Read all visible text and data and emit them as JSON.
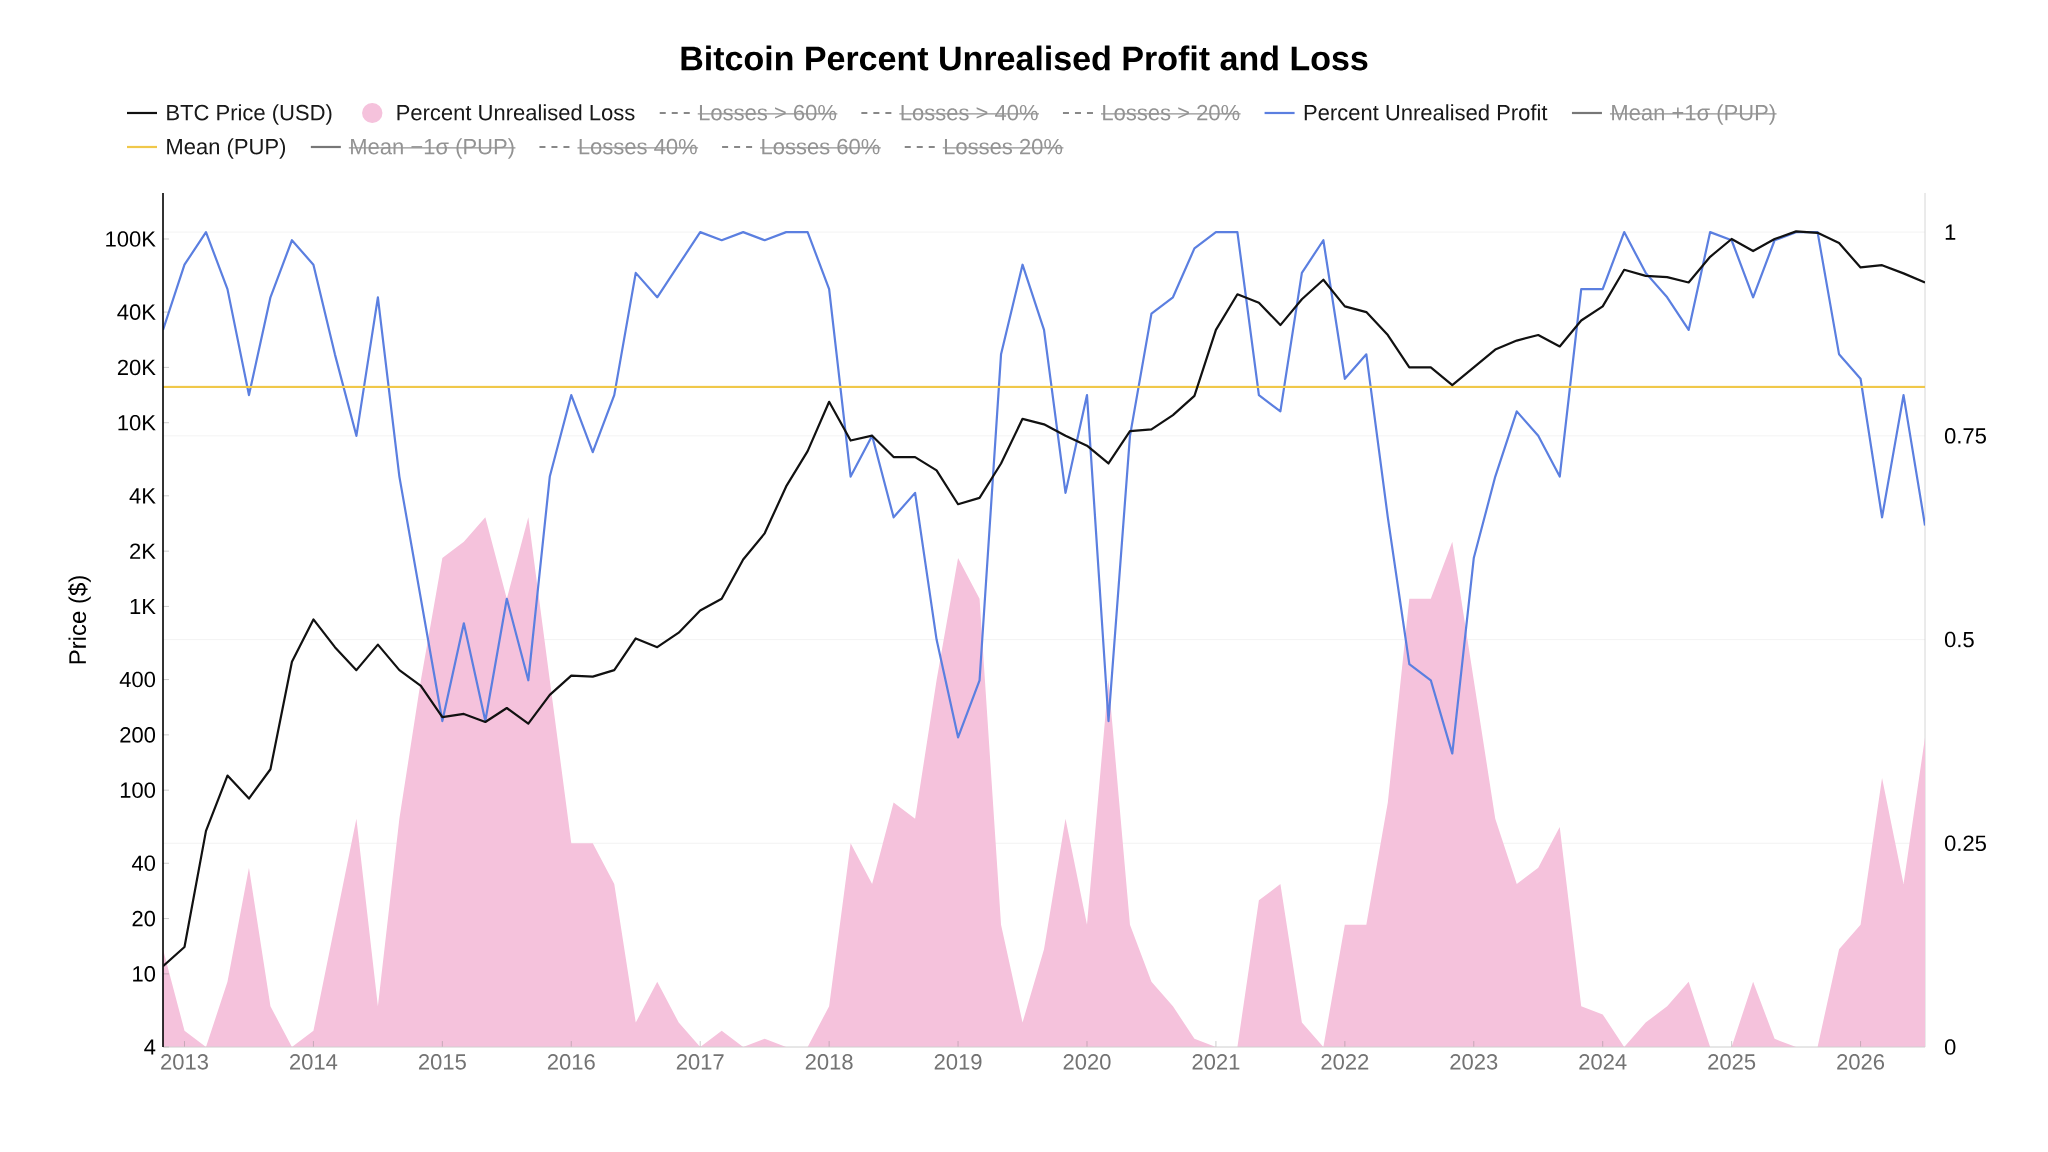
{
  "chart_data": {
    "type": "line",
    "title": "Bitcoin Percent Unrealised Profit and Loss",
    "ylabel": "Price ($)",
    "x": [
      "2012-11",
      "2013-01",
      "2013-03",
      "2013-05",
      "2013-07",
      "2013-09",
      "2013-11",
      "2014-01",
      "2014-03",
      "2014-05",
      "2014-07",
      "2014-09",
      "2014-11",
      "2015-01",
      "2015-03",
      "2015-05",
      "2015-07",
      "2015-09",
      "2015-11",
      "2016-01",
      "2016-03",
      "2016-05",
      "2016-07",
      "2016-09",
      "2016-11",
      "2017-01",
      "2017-03",
      "2017-05",
      "2017-07",
      "2017-09",
      "2017-11",
      "2018-01",
      "2018-03",
      "2018-05",
      "2018-07",
      "2018-09",
      "2018-11",
      "2019-01",
      "2019-03",
      "2019-05",
      "2019-07",
      "2019-09",
      "2019-11",
      "2020-01",
      "2020-03",
      "2020-05",
      "2020-07",
      "2020-09",
      "2020-11",
      "2021-01",
      "2021-03",
      "2021-05",
      "2021-07",
      "2021-09",
      "2021-11",
      "2022-01",
      "2022-03",
      "2022-05",
      "2022-07",
      "2022-09",
      "2022-11",
      "2023-01",
      "2023-03",
      "2023-05",
      "2023-07",
      "2023-09",
      "2023-11",
      "2024-01",
      "2024-03",
      "2024-05",
      "2024-07",
      "2024-09",
      "2024-11",
      "2025-01",
      "2025-03",
      "2025-05",
      "2025-07",
      "2025-09",
      "2025-11",
      "2026-01",
      "2026-03",
      "2026-05",
      "2026-07"
    ],
    "xlim": [
      "2012-11",
      "2026-07"
    ],
    "xticks": [
      "2013",
      "2014",
      "2015",
      "2016",
      "2017",
      "2018",
      "2019",
      "2020",
      "2021",
      "2022",
      "2023",
      "2024",
      "2025",
      "2026"
    ],
    "log": "y",
    "ylim": [
      4,
      178000
    ],
    "yticks": [
      4,
      10,
      20,
      40,
      100,
      200,
      400,
      {
        "value": 1000,
        "label": "1K"
      },
      {
        "value": 2000,
        "label": "2K"
      },
      {
        "value": 4000,
        "label": "4K"
      },
      {
        "value": 10000,
        "label": "10K"
      },
      {
        "value": 20000,
        "label": "20K"
      },
      {
        "value": 40000,
        "label": "40K"
      },
      {
        "value": 100000,
        "label": "100K"
      }
    ],
    "y2lim": [
      0,
      1.048
    ],
    "y2ticks": [
      0,
      0.25,
      0.5,
      0.75,
      1
    ],
    "grid": "y",
    "legend": "top",
    "series": [
      {
        "name": "BTC Price (USD)",
        "color": "#111111",
        "values": [
          11,
          14,
          60,
          120,
          90,
          130,
          500,
          850,
          600,
          450,
          620,
          450,
          370,
          250,
          260,
          235,
          280,
          230,
          330,
          420,
          415,
          450,
          670,
          600,
          720,
          950,
          1100,
          1800,
          2500,
          4500,
          7000,
          13000,
          8000,
          8500,
          6500,
          6500,
          5500,
          3600,
          3900,
          6000,
          10500,
          9800,
          8500,
          7500,
          6000,
          9000,
          9200,
          11000,
          14000,
          32000,
          50000,
          45000,
          34000,
          47000,
          60000,
          43000,
          40000,
          30000,
          20000,
          20000,
          16000,
          20000,
          25000,
          28000,
          30000,
          26000,
          36000,
          43000,
          68000,
          63000,
          62000,
          58000,
          80000,
          100000,
          86000,
          100000,
          110000,
          108000,
          95000,
          70000,
          72000,
          65000,
          58000
        ]
      },
      {
        "name": "Percent Unrealised Loss",
        "type": "area",
        "axis": "y2",
        "color": "#f5c2dc",
        "values": [
          0.12,
          0.02,
          0.0,
          0.08,
          0.22,
          0.05,
          0.0,
          0.02,
          0.15,
          0.28,
          0.05,
          0.28,
          0.45,
          0.6,
          0.62,
          0.65,
          0.55,
          0.65,
          0.45,
          0.25,
          0.25,
          0.2,
          0.03,
          0.08,
          0.03,
          0.0,
          0.02,
          0.0,
          0.01,
          0.0,
          0.0,
          0.05,
          0.25,
          0.2,
          0.3,
          0.28,
          0.45,
          0.6,
          0.55,
          0.15,
          0.03,
          0.12,
          0.28,
          0.15,
          0.45,
          0.15,
          0.08,
          0.05,
          0.01,
          0.0,
          0.0,
          0.18,
          0.2,
          0.03,
          0.0,
          0.15,
          0.15,
          0.3,
          0.55,
          0.55,
          0.62,
          0.45,
          0.28,
          0.2,
          0.22,
          0.27,
          0.05,
          0.04,
          0.0,
          0.03,
          0.05,
          0.08,
          0.0,
          0.0,
          0.08,
          0.01,
          0.0,
          0.0,
          0.12,
          0.15,
          0.33,
          0.2,
          0.38
        ]
      },
      {
        "name": "Losses > 60%",
        "axis": "y2",
        "color": "#888888",
        "line_style": "dashed",
        "values": [
          null,
          null,
          null,
          null,
          null,
          null,
          null,
          null,
          null,
          null,
          null,
          null,
          null,
          null,
          null,
          null,
          null,
          null,
          null,
          null,
          null,
          null,
          null,
          null,
          null,
          null,
          null,
          null,
          null,
          null,
          null,
          null,
          null,
          null,
          null,
          null,
          null,
          null,
          null,
          null,
          null,
          null,
          null,
          null,
          null,
          null,
          null,
          null,
          null,
          null,
          null,
          null,
          null,
          null,
          null,
          null,
          null,
          null,
          null,
          null,
          null,
          null,
          null,
          null,
          null,
          null,
          null,
          null,
          null,
          null,
          null,
          null,
          null,
          null,
          null,
          null,
          null,
          null,
          null,
          null,
          null,
          null,
          null
        ]
      },
      {
        "name": "Losses > 40%",
        "axis": "y2",
        "color": "#888888",
        "line_style": "dashed",
        "values": [
          null,
          null,
          null,
          null,
          null,
          null,
          null,
          null,
          null,
          null,
          null,
          null,
          null,
          null,
          null,
          null,
          null,
          null,
          null,
          null,
          null,
          null,
          null,
          null,
          null,
          null,
          null,
          null,
          null,
          null,
          null,
          null,
          null,
          null,
          null,
          null,
          null,
          null,
          null,
          null,
          null,
          null,
          null,
          null,
          null,
          null,
          null,
          null,
          null,
          null,
          null,
          null,
          null,
          null,
          null,
          null,
          null,
          null,
          null,
          null,
          null,
          null,
          null,
          null,
          null,
          null,
          null,
          null,
          null,
          null,
          null,
          null,
          null,
          null,
          null,
          null,
          null,
          null,
          null,
          null,
          null,
          null,
          null
        ]
      },
      {
        "name": "Losses > 20%",
        "axis": "y2",
        "color": "#888888",
        "line_style": "dashed",
        "values": [
          null,
          null,
          null,
          null,
          null,
          null,
          null,
          null,
          null,
          null,
          null,
          null,
          null,
          null,
          null,
          null,
          null,
          null,
          null,
          null,
          null,
          null,
          null,
          null,
          null,
          null,
          null,
          null,
          null,
          null,
          null,
          null,
          null,
          null,
          null,
          null,
          null,
          null,
          null,
          null,
          null,
          null,
          null,
          null,
          null,
          null,
          null,
          null,
          null,
          null,
          null,
          null,
          null,
          null,
          null,
          null,
          null,
          null,
          null,
          null,
          null,
          null,
          null,
          null,
          null,
          null,
          null,
          null,
          null,
          null,
          null,
          null,
          null,
          null,
          null,
          null,
          null,
          null,
          null,
          null,
          null,
          null,
          null
        ]
      },
      {
        "name": "Percent Unrealised Profit",
        "axis": "y2",
        "color": "#5b7fe0",
        "values": [
          0.88,
          0.96,
          1.0,
          0.93,
          0.8,
          0.92,
          0.99,
          0.96,
          0.85,
          0.75,
          0.92,
          0.7,
          0.55,
          0.4,
          0.52,
          0.4,
          0.55,
          0.45,
          0.7,
          0.8,
          0.73,
          0.8,
          0.95,
          0.92,
          0.96,
          1.0,
          0.99,
          1.0,
          0.99,
          1.0,
          1.0,
          0.93,
          0.7,
          0.75,
          0.65,
          0.68,
          0.5,
          0.38,
          0.45,
          0.85,
          0.96,
          0.88,
          0.68,
          0.8,
          0.4,
          0.75,
          0.9,
          0.92,
          0.98,
          1.0,
          1.0,
          0.8,
          0.78,
          0.95,
          0.99,
          0.82,
          0.85,
          0.65,
          0.47,
          0.45,
          0.36,
          0.6,
          0.7,
          0.78,
          0.75,
          0.7,
          0.93,
          0.93,
          1.0,
          0.95,
          0.92,
          0.88,
          1.0,
          0.99,
          0.92,
          0.99,
          1.0,
          1.0,
          0.85,
          0.82,
          0.65,
          0.8,
          0.64
        ]
      },
      {
        "name": "Mean +1σ (PUP)",
        "axis": "y2",
        "color": "#777777",
        "values": [
          null,
          null,
          null,
          null,
          null,
          null,
          null,
          null,
          null,
          null,
          null,
          null,
          null,
          null,
          null,
          null,
          null,
          null,
          null,
          null,
          null,
          null,
          null,
          null,
          null,
          null,
          null,
          null,
          null,
          null,
          null,
          null,
          null,
          null,
          null,
          null,
          null,
          null,
          null,
          null,
          null,
          null,
          null,
          null,
          null,
          null,
          null,
          null,
          null,
          null,
          null,
          null,
          null,
          null,
          null,
          null,
          null,
          null,
          null,
          null,
          null,
          null,
          null,
          null,
          null,
          null,
          null,
          null,
          null,
          null,
          null,
          null,
          null,
          null,
          null,
          null,
          null,
          null,
          null,
          null,
          null,
          null,
          null
        ]
      },
      {
        "name": "Mean (PUP)",
        "axis": "y2",
        "color": "#f0c84a",
        "x": [
          "2012-11",
          "2026-07"
        ],
        "values": [
          0.81,
          0.81
        ]
      },
      {
        "name": "Mean −1σ (PUP)",
        "axis": "y2",
        "color": "#777777",
        "values": [
          null,
          null,
          null,
          null,
          null,
          null,
          null,
          null,
          null,
          null,
          null,
          null,
          null,
          null,
          null,
          null,
          null,
          null,
          null,
          null,
          null,
          null,
          null,
          null,
          null,
          null,
          null,
          null,
          null,
          null,
          null,
          null,
          null,
          null,
          null,
          null,
          null,
          null,
          null,
          null,
          null,
          null,
          null,
          null,
          null,
          null,
          null,
          null,
          null,
          null,
          null,
          null,
          null,
          null,
          null,
          null,
          null,
          null,
          null,
          null,
          null,
          null,
          null,
          null,
          null,
          null,
          null,
          null,
          null,
          null,
          null,
          null,
          null,
          null,
          null,
          null,
          null,
          null,
          null,
          null,
          null,
          null,
          null
        ]
      },
      {
        "name": "Losses 40%",
        "axis": "y2",
        "color": "#888888",
        "line_style": "dashed",
        "values": [
          null,
          null,
          null,
          null,
          null,
          null,
          null,
          null,
          null,
          null,
          null,
          null,
          null,
          null,
          null,
          null,
          null,
          null,
          null,
          null,
          null,
          null,
          null,
          null,
          null,
          null,
          null,
          null,
          null,
          null,
          null,
          null,
          null,
          null,
          null,
          null,
          null,
          null,
          null,
          null,
          null,
          null,
          null,
          null,
          null,
          null,
          null,
          null,
          null,
          null,
          null,
          null,
          null,
          null,
          null,
          null,
          null,
          null,
          null,
          null,
          null,
          null,
          null,
          null,
          null,
          null,
          null,
          null,
          null,
          null,
          null,
          null,
          null,
          null,
          null,
          null,
          null,
          null,
          null,
          null,
          null,
          null,
          null
        ]
      },
      {
        "name": "Losses 60%",
        "axis": "y2",
        "color": "#888888",
        "line_style": "dashed",
        "values": [
          null,
          null,
          null,
          null,
          null,
          null,
          null,
          null,
          null,
          null,
          null,
          null,
          null,
          null,
          null,
          null,
          null,
          null,
          null,
          null,
          null,
          null,
          null,
          null,
          null,
          null,
          null,
          null,
          null,
          null,
          null,
          null,
          null,
          null,
          null,
          null,
          null,
          null,
          null,
          null,
          null,
          null,
          null,
          null,
          null,
          null,
          null,
          null,
          null,
          null,
          null,
          null,
          null,
          null,
          null,
          null,
          null,
          null,
          null,
          null,
          null,
          null,
          null,
          null,
          null,
          null,
          null,
          null,
          null,
          null,
          null,
          null,
          null,
          null,
          null,
          null,
          null,
          null,
          null,
          null,
          null,
          null,
          null
        ]
      },
      {
        "name": "Losses 20%",
        "axis": "y2",
        "color": "#888888",
        "line_style": "dashed",
        "values": [
          null,
          null,
          null,
          null,
          null,
          null,
          null,
          null,
          null,
          null,
          null,
          null,
          null,
          null,
          null,
          null,
          null,
          null,
          null,
          null,
          null,
          null,
          null,
          null,
          null,
          null,
          null,
          null,
          null,
          null,
          null,
          null,
          null,
          null,
          null,
          null,
          null,
          null,
          null,
          null,
          null,
          null,
          null,
          null,
          null,
          null,
          null,
          null,
          null,
          null,
          null,
          null,
          null,
          null,
          null,
          null,
          null,
          null,
          null,
          null,
          null,
          null,
          null,
          null,
          null,
          null,
          null,
          null,
          null,
          null,
          null,
          null,
          null,
          null,
          null,
          null,
          null,
          null,
          null,
          null,
          null,
          null,
          null
        ]
      }
    ]
  }
}
